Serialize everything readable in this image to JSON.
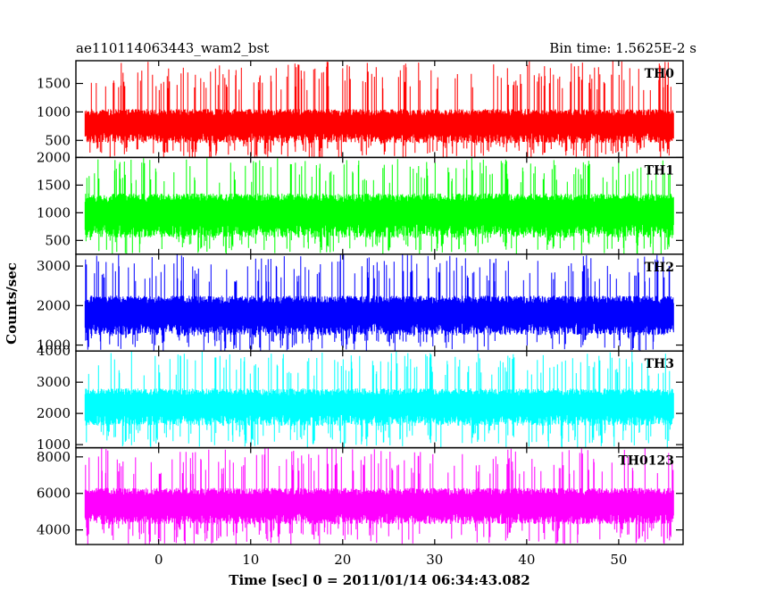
{
  "header": {
    "title": "ae110114063443_wam2_bst",
    "bin_time": "Bin time: 1.5625E-2 s"
  },
  "axes": {
    "xlabel": "Time [sec] 0 = 2011/01/14 06:34:43.082",
    "ylabel": "Counts/sec"
  },
  "chart_data": {
    "type": "line",
    "title": "ae110114063443_wam2_bst",
    "xlabel": "Time [sec] 0 = 2011/01/14 06:34:43.082",
    "ylabel": "Counts/sec",
    "xlim": [
      -9,
      57
    ],
    "x_data_range": [
      -8,
      56
    ],
    "bin_time_s": 0.015625,
    "x_ticks": [
      0,
      10,
      20,
      30,
      40,
      50
    ],
    "x_tick_labels": [
      "0",
      "10",
      "20",
      "30",
      "40",
      "50"
    ],
    "panels": [
      {
        "name": "TH0",
        "color": "#ff0000",
        "ylim": [
          200,
          1900
        ],
        "y_ticks": [
          500,
          1000,
          1500
        ],
        "y_tick_labels": [
          "500",
          "1000",
          "1500"
        ],
        "baseline": 750,
        "band_low": 450,
        "band_high": 1050,
        "spike_min": 180,
        "spike_max": 1900
      },
      {
        "name": "TH1",
        "color": "#00ff00",
        "ylim": [
          250,
          2000
        ],
        "y_ticks": [
          500,
          1000,
          1500,
          2000
        ],
        "y_tick_labels": [
          "500",
          "1000",
          "1500",
          "2000"
        ],
        "baseline": 950,
        "band_low": 550,
        "band_high": 1350,
        "spike_min": 250,
        "spike_max": 2000
      },
      {
        "name": "TH2",
        "color": "#0000ff",
        "ylim": [
          850,
          3300
        ],
        "y_ticks": [
          1000,
          2000,
          3000
        ],
        "y_tick_labels": [
          "1000",
          "2000",
          "3000"
        ],
        "baseline": 1750,
        "band_low": 1250,
        "band_high": 2250,
        "spike_min": 850,
        "spike_max": 3300
      },
      {
        "name": "TH3",
        "color": "#00ffff",
        "ylim": [
          900,
          4000
        ],
        "y_ticks": [
          1000,
          2000,
          3000,
          4000
        ],
        "y_tick_labels": [
          "1000",
          "2000",
          "3000",
          "4000"
        ],
        "baseline": 2200,
        "band_low": 1600,
        "band_high": 2800,
        "spike_min": 900,
        "spike_max": 4000
      },
      {
        "name": "TH0123",
        "color": "#ff00ff",
        "ylim": [
          3200,
          8500
        ],
        "y_ticks": [
          4000,
          6000,
          8000
        ],
        "y_tick_labels": [
          "4000",
          "6000",
          "8000"
        ],
        "baseline": 5300,
        "band_low": 4300,
        "band_high": 6300,
        "spike_min": 3200,
        "spike_max": 8500
      }
    ]
  }
}
